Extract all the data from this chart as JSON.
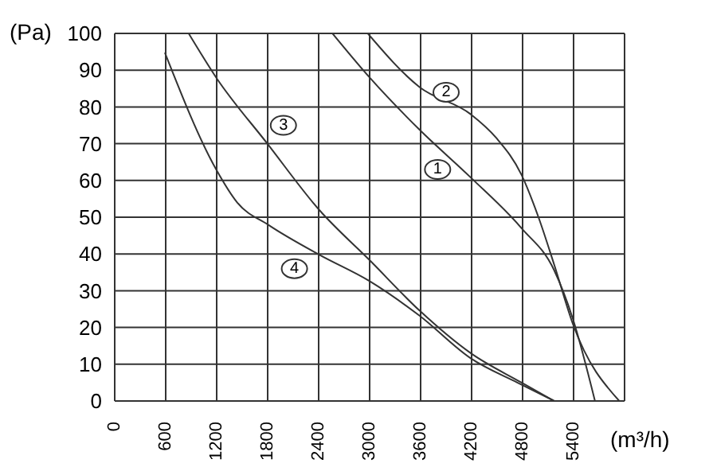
{
  "chart_data": {
    "type": "line",
    "xlabel": "(m³/h)",
    "ylabel": "(Pa)",
    "xlim": [
      0,
      6000
    ],
    "xticks": [
      0,
      600,
      1200,
      1800,
      2400,
      3000,
      3600,
      4200,
      4800,
      5400,
      {
        "value": 6000,
        "label": null
      }
    ],
    "ylim": [
      0,
      100
    ],
    "yticks": [
      0,
      10,
      20,
      30,
      40,
      50,
      60,
      70,
      80,
      90,
      100
    ],
    "grid": true,
    "marker": "none",
    "line_style": "solid",
    "series": [
      {
        "color": "#333333",
        "x": [
          2562,
          3000,
          3587,
          4190,
          4788,
          5173,
          5391,
          5652
        ],
        "values": [
          100,
          88,
          73.8,
          60.8,
          47,
          35.5,
          22.4,
          0
        ]
      },
      {
        "color": "#333333",
        "x": [
          2978,
          3587,
          4190,
          4489,
          4788,
          4987,
          5173,
          5391,
          5938
        ],
        "values": [
          100,
          85.4,
          78,
          71.6,
          61.5,
          50,
          37,
          21,
          0
        ]
      },
      {
        "color": "#333333",
        "x": [
          870,
          1194,
          1797,
          2406,
          3000,
          3587,
          4190,
          4788,
          5173
        ],
        "values": [
          100,
          88,
          70,
          52,
          38.3,
          24.6,
          13,
          5,
          0
        ]
      },
      {
        "color": "#333333",
        "x": [
          590,
          1194,
          1442,
          1815,
          2406,
          3000,
          3587,
          4190,
          4738,
          5173
        ],
        "values": [
          94.8,
          63,
          54,
          47.8,
          39.8,
          32.6,
          23.2,
          11.6,
          5,
          0
        ]
      }
    ],
    "annotations": [
      {
        "text": "1",
        "x": 3800,
        "y": 63
      },
      {
        "text": "2",
        "x": 3900,
        "y": 84
      },
      {
        "text": "3",
        "x": 1985,
        "y": 75
      },
      {
        "text": "4",
        "x": 2115,
        "y": 36
      }
    ]
  }
}
